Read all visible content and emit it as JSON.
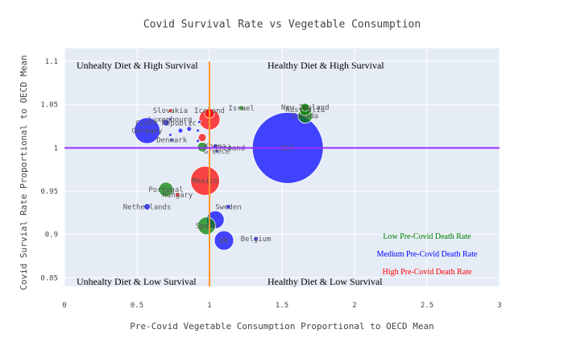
{
  "chart_data": {
    "type": "scatter",
    "title": "Covid Survival Rate vs Vegetable Consumption",
    "xlabel": "Pre-Covid Vegetable Consumption Proportional to OECD Mean",
    "ylabel": "Covid Survial Rate Proportional to OECD Mean",
    "xlim": [
      0,
      3
    ],
    "ylim": [
      0.84,
      1.115
    ],
    "x_ticks": [
      "0",
      "0.5",
      "1",
      "1.5",
      "2",
      "2.5",
      "3"
    ],
    "y_ticks": [
      "0.85",
      "0.9",
      "0.95",
      "1",
      "1.05",
      "1.1"
    ],
    "grid": true,
    "reference_lines": {
      "x": 1,
      "y": 1
    },
    "quadrant_labels": {
      "top_left": "Unhealty Diet & High Survival",
      "top_right": "Healthy Diet & High Survival",
      "bottom_left": "Unhealty Diet & Low Survival",
      "bottom_right": "Healthy Diet & Low Survival"
    },
    "legend": {
      "placement": "bottom-right",
      "entries": [
        {
          "label": "Low Pre-Covid Death Rate",
          "color": "#008000"
        },
        {
          "label": "Medium Pre-Covid Death Rate",
          "color": "#0000ff"
        },
        {
          "label": "High Pre-Covid Death Rate",
          "color": "#ff0000"
        }
      ]
    },
    "colors": {
      "low": "#008000",
      "medium": "#0000ff",
      "high": "#ff0000",
      "vline": "#ff9933",
      "hline": "#9933ff",
      "plot_bg": "#e5ecf6"
    },
    "points": [
      {
        "label": "USA",
        "x": 1.54,
        "y": 1.0,
        "size": 44,
        "group": "medium"
      },
      {
        "label": "Mexico",
        "x": 0.97,
        "y": 0.962,
        "size": 18,
        "group": "high"
      },
      {
        "label": "Iceland",
        "x": 1.0,
        "y": 1.043,
        "size": 0,
        "group": "medium"
      },
      {
        "label": "Slovakia",
        "x": 0.73,
        "y": 1.043,
        "size": 2.5,
        "group": "high"
      },
      {
        "label": "Israel",
        "x": 1.22,
        "y": 1.046,
        "size": 3,
        "group": "low"
      },
      {
        "label": "New Zealand",
        "x": 1.66,
        "y": 1.047,
        "size": 5,
        "group": "low"
      },
      {
        "label": "Australia",
        "x": 1.66,
        "y": 1.044,
        "size": 7,
        "group": "low"
      },
      {
        "label": "Canada",
        "x": 1.66,
        "y": 1.037,
        "size": 9,
        "group": "low"
      },
      {
        "label": "",
        "x": 1.0,
        "y": 1.04,
        "size": 6,
        "group": "high"
      },
      {
        "label": "",
        "x": 1.0,
        "y": 1.033,
        "size": 13,
        "group": "high"
      },
      {
        "label": "",
        "x": 0.95,
        "y": 1.012,
        "size": 5,
        "group": "high"
      },
      {
        "label": "Luxembourg",
        "x": 0.73,
        "y": 1.033,
        "size": 2,
        "group": "medium"
      },
      {
        "label": "Czech Republic",
        "x": 0.7,
        "y": 1.029,
        "size": 4,
        "group": "medium"
      },
      {
        "label": "Germany",
        "x": 0.57,
        "y": 1.02,
        "size": 16,
        "group": "medium"
      },
      {
        "label": "",
        "x": 0.8,
        "y": 1.02,
        "size": 3,
        "group": "medium"
      },
      {
        "label": "",
        "x": 0.93,
        "y": 1.03,
        "size": 2,
        "group": "medium"
      },
      {
        "label": "",
        "x": 0.92,
        "y": 1.02,
        "size": 2,
        "group": "medium"
      },
      {
        "label": "",
        "x": 0.86,
        "y": 1.022,
        "size": 3,
        "group": "medium"
      },
      {
        "label": "Denmark",
        "x": 0.74,
        "y": 1.009,
        "size": 2,
        "group": "medium"
      },
      {
        "label": "",
        "x": 0.73,
        "y": 1.015,
        "size": 2,
        "group": "medium"
      },
      {
        "label": "",
        "x": 0.92,
        "y": 1.008,
        "size": 2,
        "group": "medium"
      },
      {
        "label": "",
        "x": 0.95,
        "y": 1.001,
        "size": 6,
        "group": "low"
      },
      {
        "label": "Korea",
        "x": 1.04,
        "y": 1.002,
        "size": 3,
        "group": "medium"
      },
      {
        "label": "Ireland",
        "x": 1.14,
        "y": 1.0,
        "size": 3,
        "group": "low"
      },
      {
        "label": "Greece",
        "x": 1.05,
        "y": 0.996,
        "size": 2,
        "group": "medium"
      },
      {
        "label": "Portugal",
        "x": 0.7,
        "y": 0.952,
        "size": 9,
        "group": "low"
      },
      {
        "label": "Hungary",
        "x": 0.78,
        "y": 0.946,
        "size": 3,
        "group": "high"
      },
      {
        "label": "Netherlands",
        "x": 0.57,
        "y": 0.932,
        "size": 4,
        "group": "medium"
      },
      {
        "label": "Sweden",
        "x": 1.13,
        "y": 0.932,
        "size": 3,
        "group": "medium"
      },
      {
        "label": "",
        "x": 1.04,
        "y": 0.917,
        "size": 11,
        "group": "medium"
      },
      {
        "label": "Spain",
        "x": 0.98,
        "y": 0.91,
        "size": 11,
        "group": "low"
      },
      {
        "label": "UK",
        "x": 1.1,
        "y": 0.893,
        "size": 12,
        "group": "medium"
      },
      {
        "label": "Belgium",
        "x": 1.32,
        "y": 0.895,
        "size": 3,
        "group": "medium"
      }
    ]
  }
}
